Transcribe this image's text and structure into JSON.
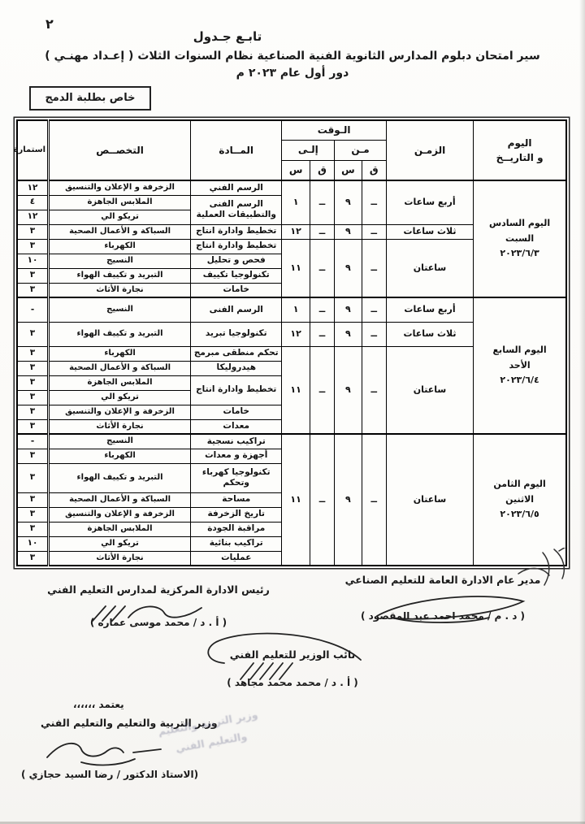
{
  "page": {
    "page_number": "٢",
    "titles": {
      "line1": "تابـع جـدول",
      "line2": "سير امتحان دبلوم المدارس الثانوية الفنية الصناعية  نظام السنوات الثلاث ( إعـداد مهنـي )",
      "line3": "دور أول  عام ٢٠٢٣ م"
    },
    "badge": "خاص بطلبة الدمج"
  },
  "colors": {
    "ink": "#1a1a1a",
    "paper": "#fbfaf8"
  },
  "table": {
    "header": {
      "day": "اليوم\nو التاريــخ",
      "zaman": "الزمـن",
      "waqt": "الـوقت",
      "min": "مـن",
      "ila": "إلـى",
      "s": "س",
      "q": "ق",
      "madda": "المــادة",
      "takhassus": "التخصــص",
      "istimara": "استمارة"
    },
    "days": [
      {
        "rows": [
          {
            "cells": [
              {
                "t": "اليوم السادس\nالسبت\n٢٠٢٣/٦/٣",
                "rs": 8,
                "c": "day"
              },
              {
                "t": "أربع ساعات",
                "rs": 3,
                "c": "zaman"
              },
              {
                "t": "ــ",
                "rs": 3,
                "c": "q"
              },
              {
                "t": "٩",
                "rs": 3,
                "c": "s"
              },
              {
                "t": "ــ",
                "rs": 3,
                "c": "q"
              },
              {
                "t": "١",
                "rs": 3,
                "c": "s"
              },
              {
                "t": "الرسم الفني",
                "c": "madda"
              },
              {
                "t": "الزخرفة و الإعلان والتنسيق",
                "c": "takh"
              },
              {
                "t": "١٢",
                "c": "ist"
              }
            ]
          },
          {
            "cells": [
              {
                "t": "الرسم الفنى\nوالتطبيقات العملية",
                "rs": 2,
                "c": "madda"
              },
              {
                "t": "الملابس الجاهزة",
                "c": "takh"
              },
              {
                "t": "٤",
                "c": "ist"
              }
            ]
          },
          {
            "cells": [
              {
                "t": "تريكو الي",
                "c": "takh"
              },
              {
                "t": "١٢",
                "c": "ist"
              }
            ]
          },
          {
            "cells": [
              {
                "t": "ثلاث ساعات",
                "c": "zaman"
              },
              {
                "t": "ــ",
                "c": "q"
              },
              {
                "t": "٩",
                "c": "s"
              },
              {
                "t": "ــ",
                "c": "q"
              },
              {
                "t": "١٢",
                "c": "s"
              },
              {
                "t": "تخطيط وادارة انتاج",
                "c": "madda"
              },
              {
                "t": "السباكة و الأعمال الصحية",
                "c": "takh"
              },
              {
                "t": "٣",
                "c": "ist"
              }
            ]
          },
          {
            "cells": [
              {
                "t": "ساعتان",
                "rs": 4,
                "c": "zaman"
              },
              {
                "t": "ــ",
                "rs": 4,
                "c": "q"
              },
              {
                "t": "٩",
                "rs": 4,
                "c": "s"
              },
              {
                "t": "ــ",
                "rs": 4,
                "c": "q"
              },
              {
                "t": "١١",
                "rs": 4,
                "c": "s"
              },
              {
                "t": "تخطيط وادارة انتاج",
                "c": "madda"
              },
              {
                "t": "الكهرباء",
                "c": "takh"
              },
              {
                "t": "٣",
                "c": "ist"
              }
            ]
          },
          {
            "cells": [
              {
                "t": "فحص و تحليل",
                "c": "madda"
              },
              {
                "t": "النسيج",
                "c": "takh"
              },
              {
                "t": "١٠",
                "c": "ist"
              }
            ]
          },
          {
            "cells": [
              {
                "t": "تكنولوجيا تكييف",
                "c": "madda"
              },
              {
                "t": "التبريد و تكييف الهواء",
                "c": "takh"
              },
              {
                "t": "٣",
                "c": "ist"
              }
            ]
          },
          {
            "cells": [
              {
                "t": "خامات",
                "c": "madda"
              },
              {
                "t": "نجارة الأثاث",
                "c": "takh"
              },
              {
                "t": "٣",
                "c": "ist"
              }
            ]
          }
        ]
      },
      {
        "rows": [
          {
            "tall": true,
            "cells": [
              {
                "t": "اليوم السابع\nالأحد\n٢٠٢٣/٦/٤",
                "rs": 8,
                "c": "day"
              },
              {
                "t": "أربع ساعات",
                "c": "zaman"
              },
              {
                "t": "ــ",
                "c": "q"
              },
              {
                "t": "٩",
                "c": "s"
              },
              {
                "t": "ــ",
                "c": "q"
              },
              {
                "t": "١",
                "c": "s"
              },
              {
                "t": "الرسم الفنى",
                "c": "madda"
              },
              {
                "t": "النسيج",
                "c": "takh"
              },
              {
                "t": "-",
                "c": "ist"
              }
            ]
          },
          {
            "tall": true,
            "cells": [
              {
                "t": "ثلاث ساعات",
                "c": "zaman"
              },
              {
                "t": "ــ",
                "c": "q"
              },
              {
                "t": "٩",
                "c": "s"
              },
              {
                "t": "ــ",
                "c": "q"
              },
              {
                "t": "١٢",
                "c": "s"
              },
              {
                "t": "تكنولوجيا تبريد",
                "c": "madda"
              },
              {
                "t": "التبريد و تكييف الهواء",
                "c": "takh"
              },
              {
                "t": "٣",
                "c": "ist"
              }
            ]
          },
          {
            "cells": [
              {
                "t": "ساعتان",
                "rs": 6,
                "c": "zaman"
              },
              {
                "t": "ــ",
                "rs": 6,
                "c": "q"
              },
              {
                "t": "٩",
                "rs": 6,
                "c": "s"
              },
              {
                "t": "ــ",
                "rs": 6,
                "c": "q"
              },
              {
                "t": "١١",
                "rs": 6,
                "c": "s"
              },
              {
                "t": "تحكم منطقى مبرمج",
                "c": "madda"
              },
              {
                "t": "الكهرباء",
                "c": "takh"
              },
              {
                "t": "٣",
                "c": "ist"
              }
            ]
          },
          {
            "cells": [
              {
                "t": "هيدروليكا",
                "c": "madda"
              },
              {
                "t": "السباكة و الأعمال الصحية",
                "c": "takh"
              },
              {
                "t": "٣",
                "c": "ist"
              }
            ]
          },
          {
            "cells": [
              {
                "t": "تخطيط وادارة انتاج",
                "rs": 2,
                "c": "madda"
              },
              {
                "t": "الملابس الجاهزة",
                "c": "takh"
              },
              {
                "t": "٣",
                "c": "ist"
              }
            ]
          },
          {
            "cells": [
              {
                "t": "تريكو الي",
                "c": "takh"
              },
              {
                "t": "٣",
                "c": "ist"
              }
            ]
          },
          {
            "cells": [
              {
                "t": "خامات",
                "c": "madda"
              },
              {
                "t": "الزخرفة و الإعلان والتنسيق",
                "c": "takh"
              },
              {
                "t": "٣",
                "c": "ist"
              }
            ]
          },
          {
            "cells": [
              {
                "t": "معدات",
                "c": "madda"
              },
              {
                "t": "نجارة الأثاث",
                "c": "takh"
              },
              {
                "t": "٣",
                "c": "ist"
              }
            ]
          }
        ]
      },
      {
        "rows": [
          {
            "cells": [
              {
                "t": "اليوم الثامن\nالاثنين\n٢٠٢٣/٦/٥",
                "rs": 8,
                "c": "day"
              },
              {
                "t": "ساعتان",
                "rs": 8,
                "c": "zaman"
              },
              {
                "t": "ــ",
                "rs": 8,
                "c": "q"
              },
              {
                "t": "٩",
                "rs": 8,
                "c": "s"
              },
              {
                "t": "ــ",
                "rs": 8,
                "c": "q"
              },
              {
                "t": "١١",
                "rs": 8,
                "c": "s"
              },
              {
                "t": "تراكيب نسجية",
                "c": "madda"
              },
              {
                "t": "النسيج",
                "c": "takh"
              },
              {
                "t": "-",
                "c": "ist"
              }
            ]
          },
          {
            "cells": [
              {
                "t": "أجهزة و معدات",
                "c": "madda"
              },
              {
                "t": "الكهرباء",
                "c": "takh"
              },
              {
                "t": "٣",
                "c": "ist"
              }
            ]
          },
          {
            "xtall": true,
            "cells": [
              {
                "t": "تكنولوجيا كهرباء\nوتحكم",
                "c": "madda"
              },
              {
                "t": "التبريد و تكييف الهواء",
                "c": "takh"
              },
              {
                "t": "٣",
                "c": "ist"
              }
            ]
          },
          {
            "cells": [
              {
                "t": "مساحة",
                "c": "madda"
              },
              {
                "t": "السباكة و الأعمال الصحية",
                "c": "takh"
              },
              {
                "t": "٣",
                "c": "ist"
              }
            ]
          },
          {
            "cells": [
              {
                "t": "تاريخ الزخرفة",
                "c": "madda"
              },
              {
                "t": "الزخرفة و الإعلان والتنسيق",
                "c": "takh"
              },
              {
                "t": "٣",
                "c": "ist"
              }
            ]
          },
          {
            "cells": [
              {
                "t": "مراقبة الجودة",
                "c": "madda"
              },
              {
                "t": "الملابس الجاهزة",
                "c": "takh"
              },
              {
                "t": "٣",
                "c": "ist"
              }
            ]
          },
          {
            "cells": [
              {
                "t": "تراكيب بنائية",
                "c": "madda"
              },
              {
                "t": "تريكو الي",
                "c": "takh"
              },
              {
                "t": "١٠",
                "c": "ist"
              }
            ]
          },
          {
            "cells": [
              {
                "t": "عمليات",
                "c": "madda"
              },
              {
                "t": "نجارة الأثاث",
                "c": "takh"
              },
              {
                "t": "٣",
                "c": "ist"
              }
            ]
          }
        ]
      }
    ]
  },
  "signatures": {
    "right": {
      "title": "مدير عام الادارة العامة للتعليم الصناعي",
      "name": "( د . م / محمد احمد عبد المقصود )"
    },
    "left": {
      "title": "رئيس الادارة المركزية لمدارس التعليم الفني",
      "name": "( أ . د / محمد موسى عماره )"
    },
    "deputy": {
      "title": "نائب الوزير للتعليم الفني",
      "name": "( أ . د / محمد محمد مجاهد )"
    },
    "approval": {
      "word": "يعتمد ،،،،،،",
      "title": "وزير التربية والتعليم والتعليم الفني",
      "name": "(الاستاذ الدكتور / رضا السيد حجازي )"
    },
    "stamp_line1": "وزير التربية والتعليم",
    "stamp_line2": "والتعليم الفني"
  }
}
